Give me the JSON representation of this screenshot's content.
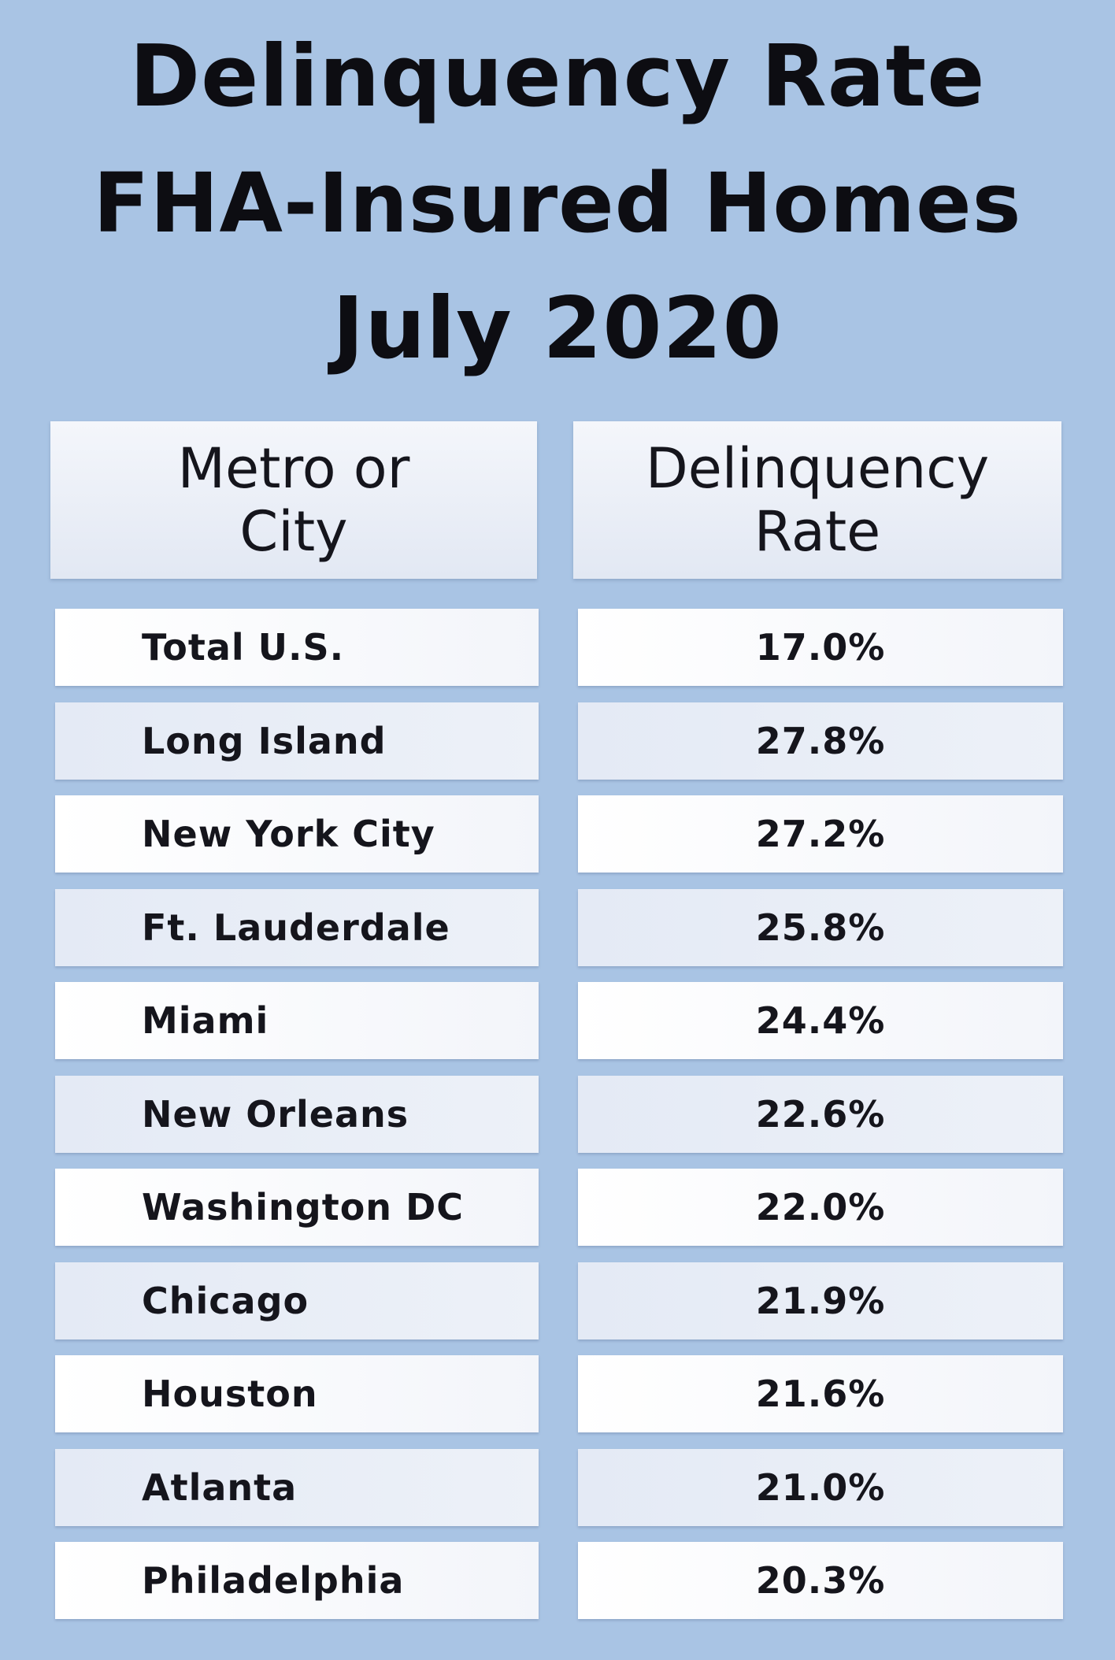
{
  "title": {
    "line1": "Delinquency Rate",
    "line2": "FHA-Insured Homes",
    "line3": "July 2020"
  },
  "columns": {
    "col1": [
      "Metro or",
      "City"
    ],
    "col2": [
      "Delinquency",
      "Rate"
    ]
  },
  "chart_data": {
    "type": "table",
    "title": "Delinquency Rate FHA-Insured Homes July 2020",
    "columns": [
      "Metro or City",
      "Delinquency Rate"
    ],
    "rows": [
      {
        "name": "Total U.S.",
        "rate": "17.0%"
      },
      {
        "name": "Long Island",
        "rate": "27.8%"
      },
      {
        "name": "New York City",
        "rate": "27.2%"
      },
      {
        "name": "Ft. Lauderdale",
        "rate": "25.8%"
      },
      {
        "name": "Miami",
        "rate": "24.4%"
      },
      {
        "name": "New Orleans",
        "rate": "22.6%"
      },
      {
        "name": "Washington DC",
        "rate": "22.0%"
      },
      {
        "name": "Chicago",
        "rate": "21.9%"
      },
      {
        "name": "Houston",
        "rate": "21.6%"
      },
      {
        "name": "Atlanta",
        "rate": "21.0%"
      },
      {
        "name": "Philadelphia",
        "rate": "20.3%"
      }
    ]
  }
}
